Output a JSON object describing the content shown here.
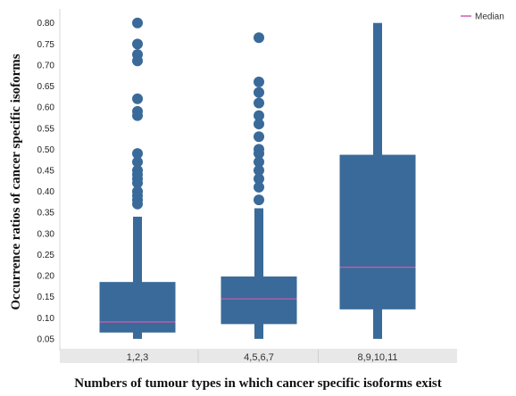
{
  "chart_data": {
    "type": "boxplot",
    "xlabel": "Numbers of tumour types in which cancer specific isoforms exist",
    "ylabel": "Occurrence ratios of cancer specific isoforms",
    "ylim": [
      0.035,
      0.81
    ],
    "yticks": [
      0.05,
      0.1,
      0.15,
      0.2,
      0.25,
      0.3,
      0.35,
      0.4,
      0.45,
      0.5,
      0.55,
      0.6,
      0.65,
      0.7,
      0.75,
      0.8
    ],
    "legend": {
      "label": "Median",
      "position": "top-right"
    },
    "colors": {
      "box": "#3a6a99",
      "median": "#d05ab0",
      "category_band": "#e8e8e8"
    },
    "categories": [
      "1,2,3",
      "4,5,6,7",
      "8,9,10,11"
    ],
    "boxes": [
      {
        "category": "1,2,3",
        "whisker_low": 0.05,
        "q1": 0.065,
        "median": 0.09,
        "q3": 0.185,
        "whisker_high": 0.34,
        "outliers": [
          0.37,
          0.38,
          0.39,
          0.4,
          0.42,
          0.43,
          0.44,
          0.45,
          0.47,
          0.49,
          0.58,
          0.59,
          0.62,
          0.71,
          0.725,
          0.75,
          0.8
        ]
      },
      {
        "category": "4,5,6,7",
        "whisker_low": 0.05,
        "q1": 0.085,
        "median": 0.145,
        "q3": 0.198,
        "whisker_high": 0.36,
        "outliers": [
          0.38,
          0.41,
          0.43,
          0.45,
          0.47,
          0.49,
          0.5,
          0.53,
          0.56,
          0.58,
          0.61,
          0.635,
          0.66,
          0.765
        ]
      },
      {
        "category": "8,9,10,11",
        "whisker_low": 0.05,
        "q1": 0.12,
        "median": 0.22,
        "q3": 0.487,
        "whisker_high": 0.8,
        "outliers": []
      }
    ]
  }
}
